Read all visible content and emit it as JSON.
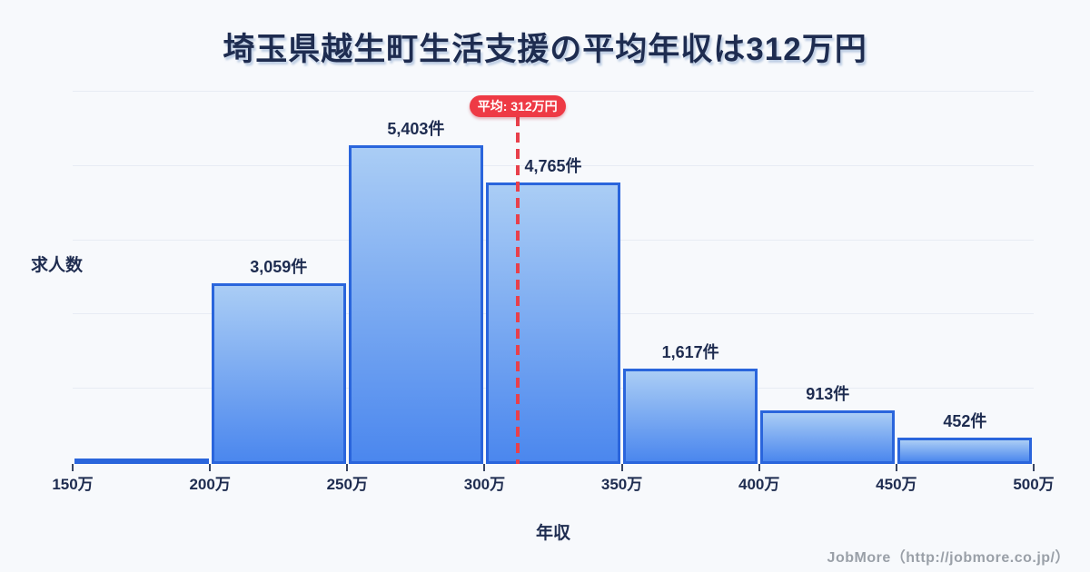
{
  "title": "埼玉県越生町生活支援の平均年収は312万円",
  "axes": {
    "y_label": "求人数",
    "x_label": "年収"
  },
  "mean_badge_label": "平均: 312万円",
  "footer": "JobMore（http://jobmore.co.jp/）",
  "chart_data": {
    "type": "bar",
    "subtype": "histogram",
    "title": "埼玉県越生町生活支援の平均年収は312万円",
    "xlabel": "年収",
    "ylabel": "求人数",
    "x_tick_labels": [
      "150万",
      "200万",
      "250万",
      "300万",
      "350万",
      "400万",
      "450万",
      "500万"
    ],
    "bin_edges_value": [
      150,
      200,
      250,
      300,
      350,
      400,
      450,
      500
    ],
    "bins": [
      {
        "range": "150万-200万",
        "count": null,
        "label": ""
      },
      {
        "range": "200万-250万",
        "count": 3059,
        "label": "3,059件"
      },
      {
        "range": "250万-300万",
        "count": 5403,
        "label": "5,403件"
      },
      {
        "range": "300万-350万",
        "count": 4765,
        "label": "4,765件"
      },
      {
        "range": "350万-400万",
        "count": 1617,
        "label": "1,617件"
      },
      {
        "range": "400万-450万",
        "count": 913,
        "label": "913件"
      },
      {
        "range": "450万-500万",
        "count": 452,
        "label": "452件"
      }
    ],
    "mean": {
      "x_value": 312,
      "label": "平均: 312万円"
    },
    "ylim": [
      0,
      6250
    ],
    "grid": true,
    "gridline_count": 5,
    "legend": "none",
    "colors": {
      "background": "#f7f9fc",
      "bar_fill_top": "#aacdf5",
      "bar_fill_bottom": "#4b87ee",
      "bar_border": "#2a65dc",
      "mean_line": "#e8404b",
      "badge_bg": "#ee3a45",
      "badge_text": "#ffffff",
      "text": "#1e2c50",
      "gridline": "#e7ecf4",
      "footer_text": "#9aa0a8"
    }
  }
}
